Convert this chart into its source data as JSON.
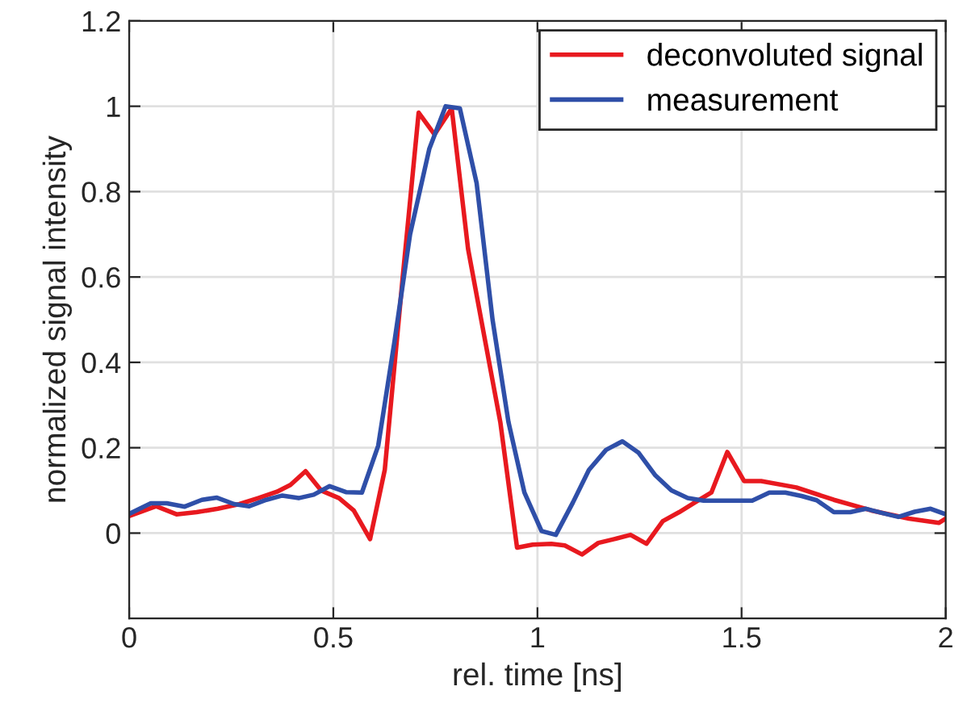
{
  "chart_data": {
    "type": "line",
    "xlabel": "rel. time [ns]",
    "ylabel": "normalized signal intensity",
    "xlim": [
      0,
      2
    ],
    "xticks": [
      0,
      {
        "value": 0.5,
        "label": "0.5"
      },
      1,
      {
        "value": 1.5,
        "label": "1.5"
      },
      2
    ],
    "ylim": [
      -0.2,
      1.2
    ],
    "yticks": [
      0,
      {
        "value": 0.2,
        "label": "0.2"
      },
      {
        "value": 0.4,
        "label": "0.4"
      },
      {
        "value": 0.6,
        "label": "0.6"
      },
      {
        "value": 0.8,
        "label": "0.8"
      },
      1,
      {
        "value": 1.2,
        "label": "1.2"
      }
    ],
    "grid": true,
    "legend": "top right",
    "marker": "none",
    "line_style": "solid",
    "series": [
      {
        "name": "deconvoluted signal",
        "color": "#e8191f",
        "x": [
          0.0,
          0.066,
          0.116,
          0.165,
          0.217,
          0.27,
          0.316,
          0.362,
          0.395,
          0.432,
          0.47,
          0.514,
          0.55,
          0.59,
          0.626,
          0.67,
          0.709,
          0.748,
          0.79,
          0.83,
          0.87,
          0.909,
          0.95,
          0.988,
          1.034,
          1.067,
          1.109,
          1.149,
          1.188,
          1.228,
          1.267,
          1.307,
          1.347,
          1.386,
          1.426,
          1.465,
          1.506,
          1.548,
          1.634,
          1.726,
          1.818,
          1.91,
          1.983,
          2.0
        ],
        "values": [
          0.04,
          0.063,
          0.044,
          0.049,
          0.057,
          0.068,
          0.082,
          0.097,
          0.113,
          0.145,
          0.1,
          0.082,
          0.053,
          -0.014,
          0.148,
          0.6,
          0.985,
          0.934,
          0.995,
          0.666,
          0.46,
          0.26,
          -0.034,
          -0.027,
          -0.025,
          -0.029,
          -0.05,
          -0.023,
          -0.014,
          -0.004,
          -0.025,
          0.028,
          0.049,
          0.072,
          0.095,
          0.19,
          0.122,
          0.122,
          0.107,
          0.078,
          0.053,
          0.034,
          0.024,
          0.034
        ]
      },
      {
        "name": "measurement",
        "color": "#2f4fa8",
        "x": [
          0.0,
          0.053,
          0.092,
          0.136,
          0.178,
          0.215,
          0.257,
          0.294,
          0.336,
          0.375,
          0.415,
          0.452,
          0.491,
          0.531,
          0.57,
          0.61,
          0.65,
          0.688,
          0.735,
          0.775,
          0.81,
          0.851,
          0.89,
          0.929,
          0.968,
          1.01,
          1.045,
          1.087,
          1.126,
          1.168,
          1.208,
          1.248,
          1.289,
          1.328,
          1.368,
          1.407,
          1.526,
          1.568,
          1.607,
          1.647,
          1.684,
          1.726,
          1.766,
          1.805,
          1.845,
          1.884,
          1.924,
          1.963,
          2.0
        ],
        "values": [
          0.045,
          0.07,
          0.07,
          0.062,
          0.078,
          0.083,
          0.068,
          0.063,
          0.078,
          0.088,
          0.082,
          0.09,
          0.11,
          0.096,
          0.095,
          0.205,
          0.45,
          0.7,
          0.9,
          1.0,
          0.995,
          0.82,
          0.5,
          0.26,
          0.095,
          0.005,
          -0.004,
          0.072,
          0.148,
          0.195,
          0.215,
          0.188,
          0.135,
          0.1,
          0.082,
          0.076,
          0.076,
          0.095,
          0.095,
          0.087,
          0.077,
          0.049,
          0.049,
          0.057,
          0.047,
          0.038,
          0.05,
          0.057,
          0.044
        ]
      }
    ]
  }
}
